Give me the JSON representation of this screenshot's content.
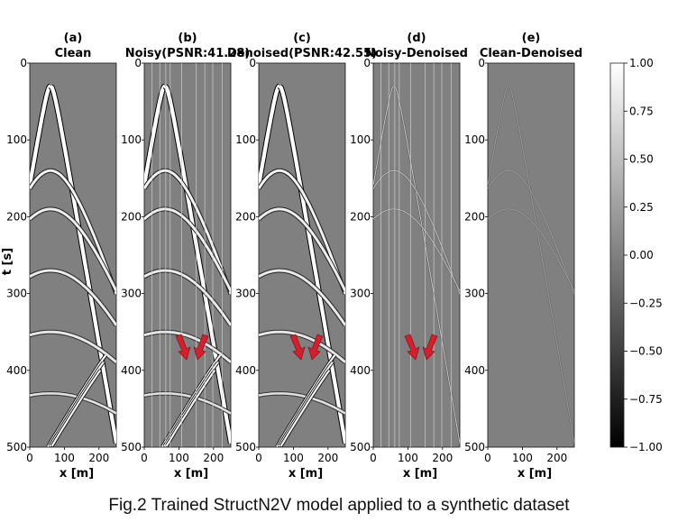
{
  "caption": "Fig.2 Trained StructN2V model applied to a synthetic dataset",
  "y_axis_label": "t [s]",
  "x_axis_label": "x [m]",
  "y_ticks": [
    "0",
    "100",
    "200",
    "300",
    "400",
    "500"
  ],
  "x_ticks": [
    "0",
    "100",
    "200"
  ],
  "panels": [
    {
      "letter": "(a)",
      "title": "Clean",
      "kind": "clean",
      "traces": false,
      "arrows": false
    },
    {
      "letter": "(b)",
      "title": "Noisy(PSNR:41.28)",
      "kind": "noisy",
      "traces": true,
      "arrows": true
    },
    {
      "letter": "(c)",
      "title": "Denoised(PSNR:42.55)",
      "kind": "denoised",
      "traces": false,
      "arrows": true
    },
    {
      "letter": "(d)",
      "title": "Noisy-Denoised",
      "kind": "residual",
      "traces": true,
      "arrows": true
    },
    {
      "letter": "(e)",
      "title": "Clean-Denoised",
      "kind": "error",
      "traces": false,
      "arrows": false
    }
  ],
  "colorbar": {
    "min": -1.0,
    "max": 1.0,
    "ticks": [
      "1.00",
      "0.75",
      "0.50",
      "0.25",
      "0.00",
      "−0.25",
      "−0.50",
      "−0.75",
      "−1.00"
    ],
    "colormap": "grayscale"
  },
  "colors": {
    "arrow": "#d81e2a",
    "background_gray": "#808080"
  }
}
